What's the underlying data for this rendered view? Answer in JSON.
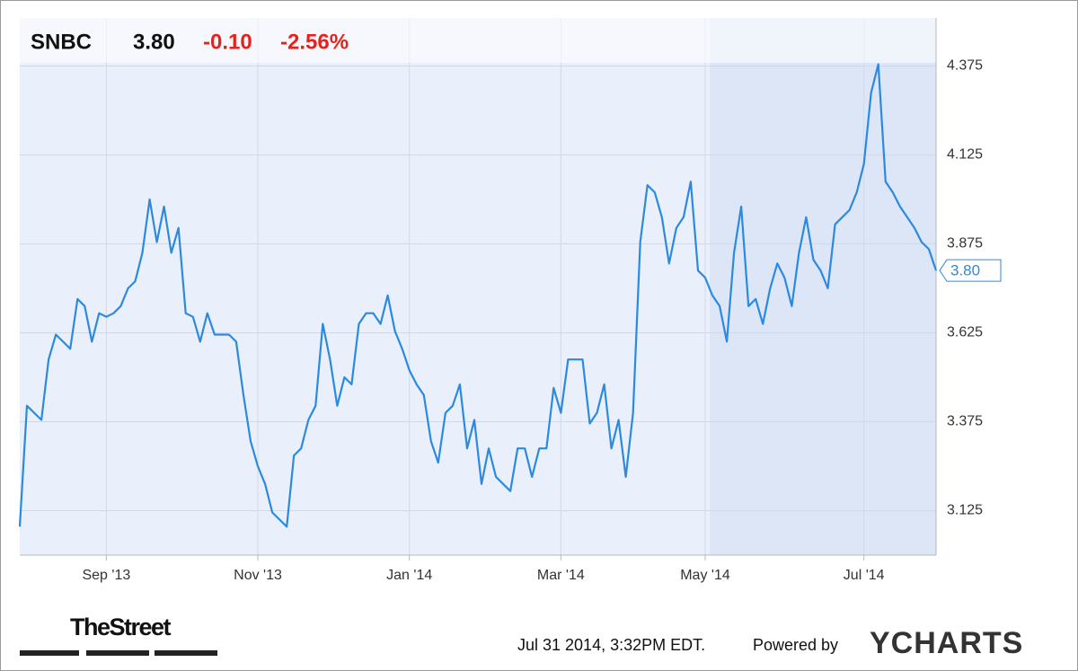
{
  "header": {
    "ticker": "SNBC",
    "price": "3.80",
    "change": "-0.10",
    "change_pct": "-2.56%"
  },
  "chart_data": {
    "type": "line",
    "color": "#2b8ae0",
    "values": [
      3.08,
      3.42,
      3.4,
      3.38,
      3.55,
      3.62,
      3.6,
      3.58,
      3.72,
      3.7,
      3.6,
      3.68,
      3.67,
      3.68,
      3.7,
      3.75,
      3.77,
      3.85,
      4.0,
      3.88,
      3.98,
      3.85,
      3.92,
      3.68,
      3.67,
      3.6,
      3.68,
      3.62,
      3.62,
      3.62,
      3.6,
      3.45,
      3.32,
      3.25,
      3.2,
      3.12,
      3.1,
      3.08,
      3.28,
      3.3,
      3.38,
      3.42,
      3.65,
      3.55,
      3.42,
      3.5,
      3.48,
      3.65,
      3.68,
      3.68,
      3.65,
      3.73,
      3.63,
      3.58,
      3.52,
      3.48,
      3.45,
      3.32,
      3.26,
      3.4,
      3.42,
      3.48,
      3.3,
      3.38,
      3.2,
      3.3,
      3.22,
      3.2,
      3.18,
      3.3,
      3.3,
      3.22,
      3.3,
      3.3,
      3.47,
      3.4,
      3.55,
      3.55,
      3.55,
      3.37,
      3.4,
      3.48,
      3.3,
      3.38,
      3.22,
      3.4,
      3.88,
      4.04,
      4.02,
      3.95,
      3.82,
      3.92,
      3.95,
      4.05,
      3.8,
      3.78,
      3.73,
      3.7,
      3.6,
      3.85,
      3.98,
      3.7,
      3.72,
      3.65,
      3.75,
      3.82,
      3.78,
      3.7,
      3.85,
      3.95,
      3.83,
      3.8,
      3.75,
      3.93,
      3.95,
      3.97,
      4.02,
      4.1,
      4.3,
      4.38,
      4.05,
      4.02,
      3.98,
      3.95,
      3.92,
      3.88,
      3.86,
      3.8
    ],
    "xlim": [
      0,
      127
    ],
    "xticks": [
      {
        "value": 12,
        "label": "Sep '13"
      },
      {
        "value": 33,
        "label": "Nov '13"
      },
      {
        "value": 54,
        "label": "Jan '14"
      },
      {
        "value": 75,
        "label": "Mar '14"
      },
      {
        "value": 95,
        "label": "May '14"
      },
      {
        "value": 117,
        "label": "Jul '14"
      }
    ],
    "ylim": [
      3.0,
      4.51
    ],
    "yticks": [
      3.125,
      3.375,
      3.625,
      3.875,
      4.125,
      4.375
    ],
    "grid": true
  },
  "footer": {
    "logo": "TheStreet",
    "timestamp": "Jul 31 2014, 3:32PM EDT.",
    "powered_by": "Powered by",
    "brand": "YCHARTS"
  }
}
